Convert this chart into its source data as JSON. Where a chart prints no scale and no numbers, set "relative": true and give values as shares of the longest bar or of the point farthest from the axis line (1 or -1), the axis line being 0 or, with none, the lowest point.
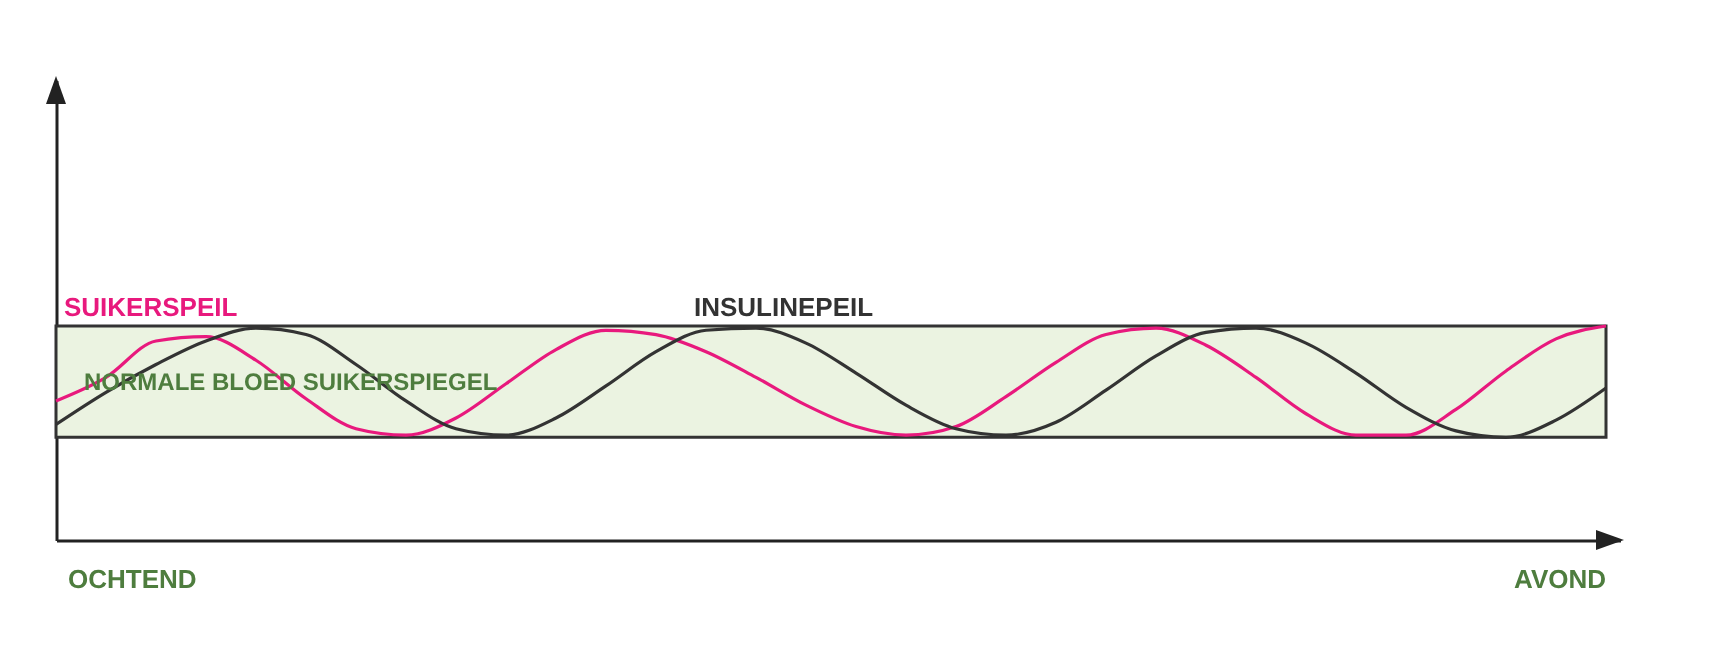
{
  "chart_data": {
    "type": "line",
    "relative": true,
    "categories": [
      null,
      null,
      null,
      null,
      null,
      null,
      null,
      null,
      null,
      null,
      null,
      null,
      null,
      null,
      null,
      null,
      null,
      null,
      null,
      null,
      null,
      null,
      null,
      null,
      null,
      null,
      null,
      null,
      null,
      null,
      null,
      null
    ],
    "series": [
      {
        "name": "SUIKERSPEIL",
        "color": "#e8197d",
        "values": [
          0.65,
          0.76,
          0.93,
          0.95,
          0.84,
          0.66,
          0.52,
          0.49,
          0.57,
          0.73,
          0.89,
          0.98,
          0.96,
          0.88,
          0.76,
          0.63,
          0.53,
          0.49,
          0.53,
          0.67,
          0.83,
          0.96,
          0.99,
          0.91,
          0.76,
          0.59,
          0.49,
          0.49,
          0.61,
          0.79,
          0.94,
          1
        ]
      },
      {
        "name": "INSULINEPEIL",
        "color": "#333333",
        "values": [
          0.54,
          0.69,
          0.82,
          0.93,
          0.99,
          0.96,
          0.82,
          0.65,
          0.52,
          0.49,
          0.57,
          0.72,
          0.88,
          0.98,
          0.99,
          0.92,
          0.78,
          0.63,
          0.52,
          0.49,
          0.55,
          0.7,
          0.86,
          0.97,
          0.99,
          0.92,
          0.78,
          0.62,
          0.51,
          0.48,
          0.56,
          0.71
        ]
      }
    ],
    "bands": [
      {
        "axis": "y",
        "from": 0.48,
        "to": 1,
        "label": "NORMALE BLOED SUIKERSPIEGEL",
        "color": "#ebf3e1"
      }
    ],
    "annotations": [
      "OCHTEND",
      "AVOND"
    ],
    "grid": false,
    "legend": false,
    "marker": "none"
  }
}
